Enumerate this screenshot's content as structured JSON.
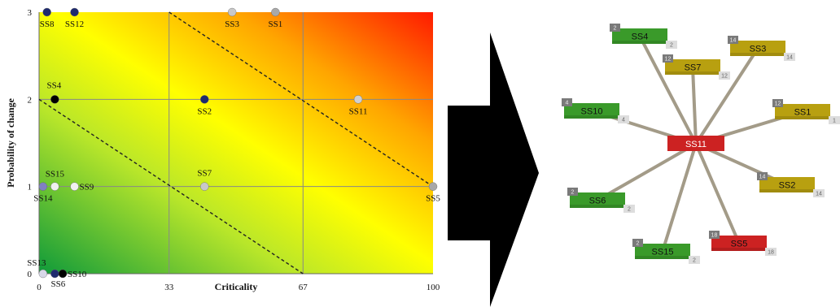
{
  "chart_data": {
    "type": "scatter",
    "xlabel": "Criticality",
    "ylabel": "Probability of change",
    "xlim": [
      0,
      100
    ],
    "ylim": [
      0,
      3
    ],
    "x_ticks": [
      "0",
      "33",
      "67",
      "100"
    ],
    "y_ticks": [
      "0",
      "1",
      "2",
      "3"
    ],
    "grid": true,
    "background": "risk gradient: green (low) to yellow to red (high)",
    "diagonal_lines": "two dashed diagonals",
    "points": [
      {
        "label": "SS8",
        "x": 2,
        "y": 3,
        "color": "#1e2a6e"
      },
      {
        "label": "SS12",
        "x": 9,
        "y": 3,
        "color": "#1e2a6e"
      },
      {
        "label": "SS3",
        "x": 49,
        "y": 3,
        "color": "#c8c8c8"
      },
      {
        "label": "SS1",
        "x": 60,
        "y": 3,
        "color": "#a8a8a8"
      },
      {
        "label": "SS4",
        "x": 4,
        "y": 2,
        "color": "#000000"
      },
      {
        "label": "SS2",
        "x": 42,
        "y": 2,
        "color": "#1e2a6e"
      },
      {
        "label": "SS11",
        "x": 81,
        "y": 2,
        "color": "#d0d0d0"
      },
      {
        "label": "SS15",
        "x": 4,
        "y": 1,
        "color": "#f0f0f0"
      },
      {
        "label": "SS14",
        "x": 1,
        "y": 1,
        "color": "#8080c0"
      },
      {
        "label": "SS9",
        "x": 9,
        "y": 1,
        "color": "#f0f0f0"
      },
      {
        "label": "SS7",
        "x": 42,
        "y": 1,
        "color": "#c8c8c8"
      },
      {
        "label": "SS5",
        "x": 100,
        "y": 1,
        "color": "#a8a8a8"
      },
      {
        "label": "SS13",
        "x": 1,
        "y": 0,
        "color": "#d8d8e8"
      },
      {
        "label": "SS6",
        "x": 4,
        "y": 0,
        "color": "#1e2a6e"
      },
      {
        "label": "SS10",
        "x": 6,
        "y": 0,
        "color": "#000000"
      }
    ]
  },
  "network": {
    "center": {
      "label": "SS11",
      "color": "#cc2222"
    },
    "nodes": [
      {
        "label": "SS4",
        "left_badge": "2",
        "right_badge": "2",
        "color": "#3a9a2a"
      },
      {
        "label": "SS3",
        "left_badge": "14",
        "right_badge": "14",
        "color": "#b8a010"
      },
      {
        "label": "SS7",
        "left_badge": "12",
        "right_badge": "12",
        "color": "#b8a010"
      },
      {
        "label": "SS10",
        "left_badge": "4",
        "right_badge": "4",
        "color": "#3a9a2a"
      },
      {
        "label": "SS1",
        "left_badge": "12",
        "right_badge": "1",
        "color": "#b8a010"
      },
      {
        "label": "SS2",
        "left_badge": "14",
        "right_badge": "14",
        "color": "#b8a010"
      },
      {
        "label": "SS6",
        "left_badge": "2",
        "right_badge": "2",
        "color": "#3a9a2a"
      },
      {
        "label": "SS15",
        "left_badge": "2",
        "right_badge": "2",
        "color": "#3a9a2a"
      },
      {
        "label": "SS5",
        "left_badge": "18",
        "right_badge": "18",
        "color": "#cc2222"
      }
    ]
  },
  "arrow": {
    "color": "#000000",
    "direction": "right"
  }
}
